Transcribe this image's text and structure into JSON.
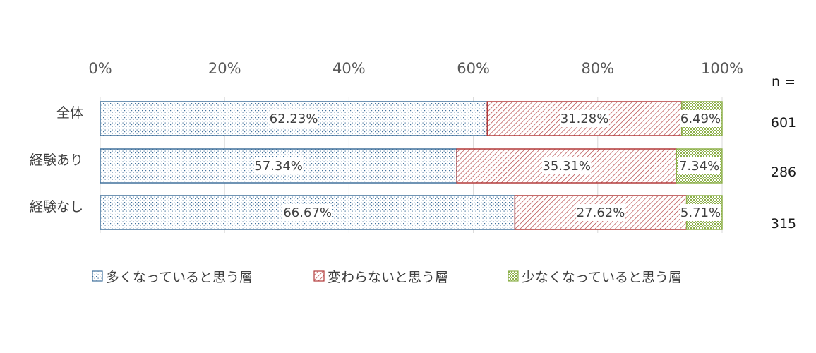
{
  "chart_data": {
    "type": "bar",
    "orientation": "horizontal",
    "stacked": true,
    "percent": true,
    "xlim": [
      0,
      100
    ],
    "x_ticks": [
      "0%",
      "20%",
      "40%",
      "60%",
      "80%",
      "100%"
    ],
    "x_tick_values": [
      0,
      20,
      40,
      60,
      80,
      100
    ],
    "grid": true,
    "legend_position": "bottom",
    "n_header": "n =",
    "categories": [
      "全体",
      "経験あり",
      "経験なし"
    ],
    "n_values": [
      "601",
      "286",
      "315"
    ],
    "series": [
      {
        "name": "多くなっていると思う層",
        "values": [
          62.23,
          57.34,
          66.67
        ],
        "labels": [
          "62.23%",
          "57.34%",
          "66.67%"
        ],
        "color": "#41719C"
      },
      {
        "name": "変わらないと思う層",
        "values": [
          31.28,
          35.31,
          27.62
        ],
        "labels": [
          "31.28%",
          "35.31%",
          "27.62%"
        ],
        "color": "#B23A3A"
      },
      {
        "name": "少なくなっていると思う層",
        "values": [
          6.49,
          7.34,
          5.71
        ],
        "labels": [
          "6.49%",
          "7.34%",
          "5.71%"
        ],
        "color": "#8DB04A"
      }
    ]
  }
}
